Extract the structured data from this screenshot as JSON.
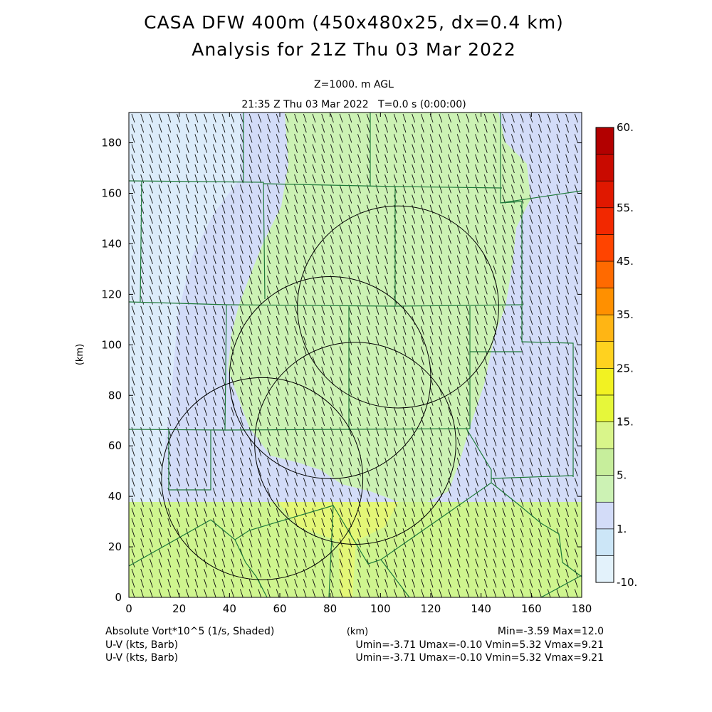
{
  "chart_data": {
    "type": "heatmap",
    "title": "CASA DFW 400m (450x480x25, dx=0.4 km)",
    "subtitle": "Analysis for 21Z Thu 03 Mar 2022",
    "level_label": "Z=1000. m AGL",
    "time_label": "21:35 Z Thu 03 Mar 2022   T=0.0 s (0:00:00)",
    "xlabel": "(km)",
    "ylabel": "(km)",
    "xlim": [
      0,
      180
    ],
    "ylim": [
      0,
      192
    ],
    "x_ticks": [
      0,
      20,
      40,
      60,
      80,
      100,
      120,
      140,
      160,
      180
    ],
    "y_ticks": [
      0,
      20,
      40,
      60,
      80,
      100,
      120,
      140,
      160,
      180
    ],
    "x_tick_labels": [
      "0",
      "20",
      "40",
      "60",
      "80",
      "100",
      "120",
      "140",
      "160",
      "180"
    ],
    "y_tick_labels": [
      "0",
      "20",
      "40",
      "60",
      "80",
      "100",
      "120",
      "140",
      "160",
      "180"
    ],
    "colorbar": {
      "labels": [
        "60.",
        "55.",
        "45.",
        "35.",
        "25.",
        "15.",
        "5.",
        "1.",
        "-10."
      ],
      "label_levels": [
        60,
        55,
        45,
        35,
        25,
        15,
        5,
        1,
        -10
      ],
      "colors": [
        "#e3f2fb",
        "#cce6f7",
        "#d3dcf8",
        "#ccf2b4",
        "#c7ee9c",
        "#d9f58a",
        "#e6f73a",
        "#f2f222",
        "#ffd21f",
        "#ffb514",
        "#ff9000",
        "#ff6a00",
        "#ff4400",
        "#f22800",
        "#e01800",
        "#c90a00",
        "#b20000"
      ]
    },
    "shading_colors": {
      "light_blue": "#dcecfa",
      "lavender": "#d3dcf8",
      "pale_green": "#ccf2b4",
      "yellow_green": "#cff58f",
      "yellow": "#e4f777"
    },
    "radar_rings": [
      {
        "cx": 107,
        "cy": 115,
        "r": 40
      },
      {
        "cx": 80,
        "cy": 87,
        "r": 40
      },
      {
        "cx": 90,
        "cy": 61,
        "r": 40
      },
      {
        "cx": 53,
        "cy": 47,
        "r": 40
      }
    ],
    "footer": {
      "field_label": "Absolute Vort*10^5 (1/s, Shaded)",
      "barb_label_1": "U-V (kts, Barb)",
      "barb_label_2": "U-V (kts, Barb)",
      "xunit": "(km)",
      "minmax": "Min=-3.59 Max=12.0",
      "uv_stats_1": "Umin=-3.71 Umax=-0.10 Vmin=5.32 Vmax=9.21",
      "uv_stats_2": "Umin=-3.71 Umax=-0.10 Vmin=5.32 Vmax=9.21"
    }
  }
}
